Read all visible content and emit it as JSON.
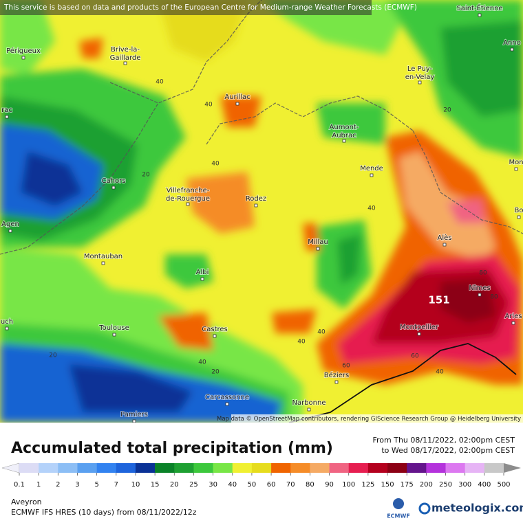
{
  "notice": "This service is based on data and products of the European Centre for Medium-range Weather Forecasts (ECMWF)",
  "attribution": "Map data © OpenStreetMap contributors, rendering GIScience Research Group @ Heidelberg University",
  "cities": [
    "Saint-Étienne",
    "Anno",
    "Périgueux",
    [
      "Brive-la-",
      "Gaillarde"
    ],
    [
      "Le Puy-",
      "en-Velay"
    ],
    "rac",
    "Aurillac",
    [
      "Aumont-",
      "Aubrac"
    ],
    "Mende",
    "Mon",
    "Cahors",
    [
      "Villefranche-",
      "de-Rouergue"
    ],
    "Rodez",
    "Bo",
    "Agen",
    "Millau",
    "Alès",
    "Montauban",
    "Albi",
    "Nîmes",
    "uch",
    "Arles",
    "Montpellier",
    "Toulouse",
    "Castres",
    "Béziers",
    "Carcassonne",
    "Narbonne",
    "Pamiers"
  ],
  "contour_labels": [
    40,
    40,
    40,
    20,
    20,
    40,
    80,
    80,
    40,
    40,
    20,
    40,
    60,
    60,
    40,
    20
  ],
  "max_label": 151,
  "legend": {
    "title": "Accumulated total precipitation (mm)",
    "period_from": "From Thu 08/11/2022, 02:00pm CEST",
    "period_to": "to Wed 08/17/2022, 02:00pm CEST",
    "ticks": [
      0.1,
      1,
      2,
      3,
      5,
      7,
      10,
      15,
      20,
      25,
      30,
      40,
      50,
      60,
      70,
      80,
      90,
      100,
      125,
      150,
      175,
      200,
      250,
      300,
      400,
      500
    ],
    "colors": [
      "#dcdcf5",
      "#b4d2fa",
      "#8cbef5",
      "#5aa0f0",
      "#3282f0",
      "#1e64dc",
      "#0a3296",
      "#0a8228",
      "#1ea032",
      "#3cc83c",
      "#78e646",
      "#f0f032",
      "#e6dc1e",
      "#f06400",
      "#f58c28",
      "#f5aa64",
      "#f06482",
      "#e61e50",
      "#b4001e",
      "#8c0014",
      "#64148c",
      "#b432dc",
      "#dc78f0",
      "#e6b4f5",
      "#c8c8c8"
    ],
    "under_color": "#f0f0fa",
    "over_color": "#8c8c8c"
  },
  "footer": {
    "region": "Aveyron",
    "model": "ECMWF IFS HRES (10 days) from 08/11/2022/12z",
    "ecmwf": "ECMWF",
    "brand": "meteologix.com"
  }
}
